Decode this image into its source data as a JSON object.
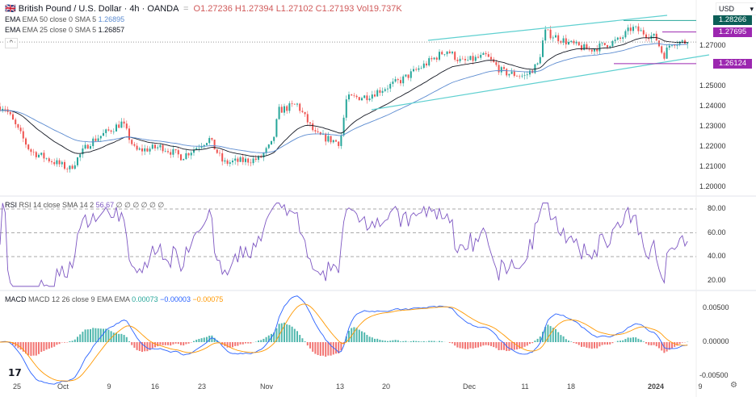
{
  "header": {
    "symbol": "British Pound / U.S. Dollar · 4h · OANDA",
    "open": "O1.27236",
    "high": "H1.27394",
    "low": "L1.27102",
    "close": "C1.27193",
    "volume": "Vol19.737K"
  },
  "indicators": {
    "ema50": {
      "label": "EMA 50 close 0 SMA 5",
      "value": "1.26895"
    },
    "ema25": {
      "label": "EMA 25 close 0 SMA 5",
      "value": "1.26857"
    },
    "rsi": {
      "label": "RSI 14 close SMA 14 2",
      "value": "56.67",
      "extra": "∅ ∅ ∅ ∅ ∅ ∅"
    },
    "macd": {
      "label": "MACD 12 26 close 9 EMA EMA",
      "hist": "0.00073",
      "macd": "−0.00003",
      "signal": "−0.00075"
    }
  },
  "currency": "USD",
  "price_axis": [
    "1.27000",
    "1.25000",
    "1.24000",
    "1.23000",
    "1.22000",
    "1.21000",
    "1.20000"
  ],
  "price_tags": [
    {
      "text": "1.28266",
      "color": "#0c5e57"
    },
    {
      "text": "1.27695",
      "color": "#9c27b0"
    },
    {
      "text": "1.26124",
      "color": "#9c27b0"
    }
  ],
  "rsi_axis": [
    "80.00",
    "60.00",
    "40.00",
    "20.00"
  ],
  "macd_axis": [
    "0.00500",
    "0.00000",
    "-0.00500"
  ],
  "time_axis": [
    "25",
    "Oct",
    "9",
    "16",
    "23",
    "Nov",
    "13",
    "20",
    "Dec",
    "11",
    "18",
    "2024",
    "9"
  ],
  "colors": {
    "up": "#26a69a",
    "down": "#ef5350",
    "ema25": "#131722",
    "ema50": "#5b8bd0",
    "channel": "#5fd0d0",
    "rsi": "#7e57c2",
    "macd": "#2962ff",
    "signal": "#ff9800"
  },
  "chart_data": {
    "type": "candlestick",
    "ylim": [
      1.195,
      1.29
    ],
    "closes": [
      [
        "2023-09-22",
        1.24
      ],
      [
        "2023-09-27",
        1.218
      ],
      [
        "2023-10-03",
        1.209
      ],
      [
        "2023-10-06",
        1.222
      ],
      [
        "2023-10-11",
        1.232
      ],
      [
        "2023-10-13",
        1.218
      ],
      [
        "2023-10-17",
        1.22
      ],
      [
        "2023-10-20",
        1.215
      ],
      [
        "2023-10-24",
        1.224
      ],
      [
        "2023-10-26",
        1.212
      ],
      [
        "2023-10-31",
        1.214
      ],
      [
        "2023-11-02",
        1.222
      ],
      [
        "2023-11-03",
        1.238
      ],
      [
        "2023-11-06",
        1.241
      ],
      [
        "2023-11-09",
        1.226
      ],
      [
        "2023-11-13",
        1.222
      ],
      [
        "2023-11-14",
        1.244
      ],
      [
        "2023-11-17",
        1.245
      ],
      [
        "2023-11-22",
        1.253
      ],
      [
        "2023-11-28",
        1.268
      ],
      [
        "2023-11-30",
        1.262
      ],
      [
        "2023-12-04",
        1.265
      ],
      [
        "2023-12-07",
        1.257
      ],
      [
        "2023-12-11",
        1.255
      ],
      [
        "2023-12-13",
        1.261
      ],
      [
        "2023-12-14",
        1.277
      ],
      [
        "2023-12-18",
        1.271
      ],
      [
        "2023-12-21",
        1.268
      ],
      [
        "2023-12-26",
        1.273
      ],
      [
        "2023-12-28",
        1.279
      ],
      [
        "2024-01-01",
        1.274
      ],
      [
        "2024-01-03",
        1.265
      ],
      [
        "2024-01-05",
        1.272
      ],
      [
        "2024-01-09",
        1.27193
      ]
    ]
  }
}
